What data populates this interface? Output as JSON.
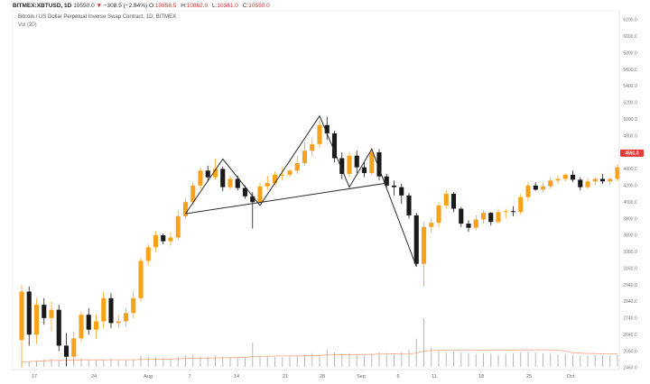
{
  "header": {
    "symbol": "BITMEX:XBTUSD, 1D",
    "last": "10550.0",
    "arrow": "▼",
    "change": "−308.5 (−2.84%)",
    "o_label": "O:",
    "o_value": "10858.5",
    "h_label": "H:",
    "h_value": "10862.0",
    "l_label": "L:",
    "l_value": "10361.0",
    "c_label": "C:",
    "c_value": "10550.0",
    "title": "Bitcoin / US Dollar Perpetual Inverse Swap Contract, 1D, BITMEX",
    "volume_label": "Vol (20)"
  },
  "chart_data": {
    "type": "candlestick",
    "price_badge": "4591.0",
    "x_labels": [
      "17",
      "24",
      "Aug",
      "7",
      "14",
      "21",
      "28",
      "Sep",
      "6",
      "11",
      "18",
      "25",
      "Oct"
    ],
    "y_ticks": [
      "6200.0",
      "6000.0",
      "5800.0",
      "5600.0",
      "5400.0",
      "5200.0",
      "5000.0",
      "4800.0",
      "4600.0",
      "4400.0",
      "4200.0",
      "4000.0",
      "3800.0",
      "3600.0",
      "3380.0",
      "3160.0",
      "2940.0",
      "2840.0",
      "2740.0",
      "2640.0",
      "2550.0",
      "2460.0"
    ],
    "colors": {
      "up": "#f7a21b",
      "down": "#1a1a1a",
      "volume": "#b8b8b8",
      "volume_ma": "#f4a582",
      "pattern": "#2b2b2b",
      "badge": "#e53935"
    },
    "candles": [
      {
        "o": 2610,
        "h": 2940,
        "l": 2460,
        "c": 2900
      },
      {
        "o": 2900,
        "h": 2930,
        "l": 2580,
        "c": 2640
      },
      {
        "o": 2640,
        "h": 2860,
        "l": 2590,
        "c": 2820
      },
      {
        "o": 2820,
        "h": 2860,
        "l": 2700,
        "c": 2740
      },
      {
        "o": 2740,
        "h": 2840,
        "l": 2660,
        "c": 2790
      },
      {
        "o": 2790,
        "h": 2820,
        "l": 2550,
        "c": 2580
      },
      {
        "o": 2580,
        "h": 2650,
        "l": 2470,
        "c": 2520
      },
      {
        "o": 2520,
        "h": 2660,
        "l": 2480,
        "c": 2620
      },
      {
        "o": 2620,
        "h": 2780,
        "l": 2600,
        "c": 2760
      },
      {
        "o": 2760,
        "h": 2800,
        "l": 2640,
        "c": 2670
      },
      {
        "o": 2670,
        "h": 2760,
        "l": 2620,
        "c": 2720
      },
      {
        "o": 2720,
        "h": 2900,
        "l": 2680,
        "c": 2860
      },
      {
        "o": 2860,
        "h": 2890,
        "l": 2680,
        "c": 2710
      },
      {
        "o": 2710,
        "h": 2760,
        "l": 2680,
        "c": 2720
      },
      {
        "o": 2720,
        "h": 2800,
        "l": 2690,
        "c": 2770
      },
      {
        "o": 2770,
        "h": 2900,
        "l": 2740,
        "c": 2860
      },
      {
        "o": 2860,
        "h": 3300,
        "l": 2840,
        "c": 3260
      },
      {
        "o": 3260,
        "h": 3480,
        "l": 3200,
        "c": 3440
      },
      {
        "o": 3440,
        "h": 3650,
        "l": 3380,
        "c": 3600
      },
      {
        "o": 3600,
        "h": 3620,
        "l": 3480,
        "c": 3520
      },
      {
        "o": 3520,
        "h": 3640,
        "l": 3460,
        "c": 3570
      },
      {
        "o": 3570,
        "h": 3900,
        "l": 3540,
        "c": 3830
      },
      {
        "o": 3830,
        "h": 4050,
        "l": 3800,
        "c": 4000
      },
      {
        "o": 4000,
        "h": 4240,
        "l": 3960,
        "c": 4200
      },
      {
        "o": 4200,
        "h": 4420,
        "l": 4150,
        "c": 4380
      },
      {
        "o": 4380,
        "h": 4440,
        "l": 4250,
        "c": 4300
      },
      {
        "o": 4300,
        "h": 4520,
        "l": 4270,
        "c": 4400
      },
      {
        "o": 4400,
        "h": 4430,
        "l": 4130,
        "c": 4180
      },
      {
        "o": 4180,
        "h": 4320,
        "l": 4150,
        "c": 4280
      },
      {
        "o": 4280,
        "h": 4320,
        "l": 4140,
        "c": 4170
      },
      {
        "o": 4170,
        "h": 4200,
        "l": 4040,
        "c": 4070
      },
      {
        "o": 4070,
        "h": 4120,
        "l": 3680,
        "c": 4000
      },
      {
        "o": 4000,
        "h": 4230,
        "l": 3980,
        "c": 4190
      },
      {
        "o": 4190,
        "h": 4320,
        "l": 4140,
        "c": 4230
      },
      {
        "o": 4230,
        "h": 4370,
        "l": 4200,
        "c": 4330
      },
      {
        "o": 4330,
        "h": 4420,
        "l": 4260,
        "c": 4330
      },
      {
        "o": 4330,
        "h": 4400,
        "l": 4300,
        "c": 4380
      },
      {
        "o": 4380,
        "h": 4560,
        "l": 4340,
        "c": 4470
      },
      {
        "o": 4470,
        "h": 4720,
        "l": 4440,
        "c": 4620
      },
      {
        "o": 4620,
        "h": 4780,
        "l": 4550,
        "c": 4700
      },
      {
        "o": 4700,
        "h": 4990,
        "l": 4650,
        "c": 4930
      },
      {
        "o": 4930,
        "h": 5030,
        "l": 4750,
        "c": 4830
      },
      {
        "o": 4830,
        "h": 4860,
        "l": 4480,
        "c": 4530
      },
      {
        "o": 4530,
        "h": 4600,
        "l": 4280,
        "c": 4340
      },
      {
        "o": 4340,
        "h": 4600,
        "l": 4300,
        "c": 4560
      },
      {
        "o": 4560,
        "h": 4620,
        "l": 4350,
        "c": 4420
      },
      {
        "o": 4420,
        "h": 4480,
        "l": 4300,
        "c": 4350
      },
      {
        "o": 4350,
        "h": 4660,
        "l": 4320,
        "c": 4600
      },
      {
        "o": 4600,
        "h": 4640,
        "l": 4260,
        "c": 4310
      },
      {
        "o": 4310,
        "h": 4340,
        "l": 4170,
        "c": 4200
      },
      {
        "o": 4200,
        "h": 4260,
        "l": 4080,
        "c": 4180
      },
      {
        "o": 4180,
        "h": 4220,
        "l": 3980,
        "c": 4080
      },
      {
        "o": 4080,
        "h": 4110,
        "l": 3800,
        "c": 3840
      },
      {
        "o": 3840,
        "h": 3870,
        "l": 3180,
        "c": 3220
      },
      {
        "o": 3220,
        "h": 3760,
        "l": 2930,
        "c": 3700
      },
      {
        "o": 3700,
        "h": 3800,
        "l": 3630,
        "c": 3750
      },
      {
        "o": 3750,
        "h": 4000,
        "l": 3700,
        "c": 3960
      },
      {
        "o": 3960,
        "h": 4140,
        "l": 3920,
        "c": 4100
      },
      {
        "o": 4100,
        "h": 4120,
        "l": 3880,
        "c": 3920
      },
      {
        "o": 3920,
        "h": 3940,
        "l": 3700,
        "c": 3740
      },
      {
        "o": 3740,
        "h": 3780,
        "l": 3640,
        "c": 3690
      },
      {
        "o": 3690,
        "h": 3840,
        "l": 3660,
        "c": 3790
      },
      {
        "o": 3790,
        "h": 3900,
        "l": 3740,
        "c": 3870
      },
      {
        "o": 3870,
        "h": 3880,
        "l": 3720,
        "c": 3760
      },
      {
        "o": 3760,
        "h": 3920,
        "l": 3740,
        "c": 3880
      },
      {
        "o": 3880,
        "h": 3920,
        "l": 3800,
        "c": 3890
      },
      {
        "o": 3890,
        "h": 3950,
        "l": 3830,
        "c": 3880
      },
      {
        "o": 3880,
        "h": 4100,
        "l": 3850,
        "c": 4060
      },
      {
        "o": 4060,
        "h": 4240,
        "l": 4010,
        "c": 4200
      },
      {
        "o": 4200,
        "h": 4240,
        "l": 4140,
        "c": 4150
      },
      {
        "o": 4150,
        "h": 4230,
        "l": 4120,
        "c": 4190
      },
      {
        "o": 4190,
        "h": 4300,
        "l": 4160,
        "c": 4260
      },
      {
        "o": 4260,
        "h": 4320,
        "l": 4220,
        "c": 4280
      },
      {
        "o": 4280,
        "h": 4340,
        "l": 4250,
        "c": 4330
      },
      {
        "o": 4330,
        "h": 4380,
        "l": 4240,
        "c": 4270
      },
      {
        "o": 4270,
        "h": 4300,
        "l": 4140,
        "c": 4180
      },
      {
        "o": 4180,
        "h": 4290,
        "l": 4160,
        "c": 4250
      },
      {
        "o": 4250,
        "h": 4300,
        "l": 4200,
        "c": 4280
      },
      {
        "o": 4280,
        "h": 4340,
        "l": 4220,
        "c": 4250
      },
      {
        "o": 4250,
        "h": 4300,
        "l": 4210,
        "c": 4280
      },
      {
        "o": 4280,
        "h": 4460,
        "l": 4250,
        "c": 4420
      }
    ],
    "volumes": [
      6,
      7,
      8,
      9,
      10,
      8,
      9,
      11,
      10,
      9,
      8,
      9,
      10,
      9,
      8,
      9,
      14,
      13,
      12,
      11,
      10,
      12,
      14,
      15,
      13,
      12,
      14,
      13,
      12,
      11,
      12,
      30,
      14,
      13,
      12,
      12,
      13,
      14,
      16,
      17,
      15,
      22,
      18,
      16,
      17,
      15,
      14,
      16,
      18,
      17,
      16,
      18,
      22,
      35,
      60,
      24,
      20,
      18,
      19,
      18,
      17,
      16,
      17,
      16,
      15,
      16,
      17,
      18,
      19,
      18,
      17,
      16,
      15,
      16,
      15,
      14,
      14,
      15,
      14,
      14,
      15
    ],
    "pattern_lines": [
      [
        [
          22,
          3860
        ],
        [
          27,
          4520
        ],
        [
          32,
          3960
        ],
        [
          40,
          5040
        ],
        [
          44,
          4180
        ],
        [
          47,
          4640
        ],
        [
          53,
          3180
        ]
      ],
      [
        [
          22,
          3860
        ],
        [
          49,
          4230
        ]
      ]
    ]
  }
}
